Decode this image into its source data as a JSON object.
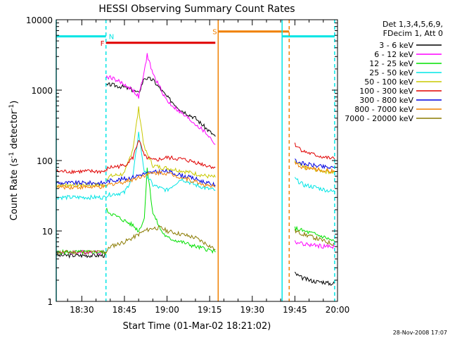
{
  "chart_data": {
    "type": "line",
    "title": "HESSI Observing Summary Count Rates",
    "xlabel": "Start Time (01-Mar-02 18:21:02)",
    "ylabel_main": "Count Rate (s",
    "ylabel_sup1": "-1",
    "ylabel_mid": " detector",
    "ylabel_sup2": "-1",
    "ylabel_end": ")",
    "y_scale": "log",
    "xlim_minutes": [
      21,
      120
    ],
    "ylim": [
      1,
      10000
    ],
    "x_ticks": [
      {
        "t": 30,
        "label": "18:30"
      },
      {
        "t": 45,
        "label": "18:45"
      },
      {
        "t": 60,
        "label": "19:00"
      },
      {
        "t": 75,
        "label": "19:15"
      },
      {
        "t": 90,
        "label": "19:30"
      },
      {
        "t": 105,
        "label": "19:45"
      },
      {
        "t": 120,
        "label": "20:00"
      }
    ],
    "y_ticks": [
      {
        "v": 1,
        "label": "1"
      },
      {
        "v": 10,
        "label": "10"
      },
      {
        "v": 100,
        "label": "100"
      },
      {
        "v": 1000,
        "label": "1000"
      },
      {
        "v": 10000,
        "label": "10000"
      }
    ],
    "legend_header": [
      "Det 1,3,4,5,6,9,",
      "FDecim 1, Att 0"
    ],
    "timestamp": "28-Nov-2008 17:07",
    "flags": [
      {
        "label": "N",
        "color": "#00e5e5",
        "segments": [
          [
            21,
            38.5
          ],
          [
            100.5,
            119
          ]
        ],
        "level": 5800
      },
      {
        "label": "F",
        "color": "#e00000",
        "segments": [
          [
            38.5,
            77
          ]
        ],
        "level": 4700
      },
      {
        "label": "S",
        "color": "#f08000",
        "segments": [
          [
            78,
            103
          ]
        ],
        "level": 6800
      }
    ],
    "event_lines": [
      {
        "t": 21,
        "color": "#00e5e5",
        "style": "solid"
      },
      {
        "t": 38.5,
        "color": "#00e5e5",
        "style": "dashed"
      },
      {
        "t": 78,
        "color": "#f08000",
        "style": "solid"
      },
      {
        "t": 100.5,
        "color": "#00e5e5",
        "style": "solid"
      },
      {
        "t": 103,
        "color": "#f08000",
        "style": "dashed"
      },
      {
        "t": 119,
        "color": "#00e5e5",
        "style": "dashed"
      }
    ],
    "series": [
      {
        "name": "3 - 6 keV",
        "color": "#000000",
        "segments": [
          {
            "x": [
              21,
              38.5
            ],
            "y": [
              4.5,
              4.5
            ]
          },
          {
            "x": [
              38.5,
              40,
              45,
              48,
              50,
              52,
              55,
              60,
              65,
              70,
              74,
              77
            ],
            "y": [
              1150,
              1200,
              1100,
              1000,
              900,
              1500,
              1400,
              800,
              520,
              400,
              280,
              220
            ]
          },
          {
            "x": [
              105,
              107,
              110,
              113,
              115,
              117,
              119
            ],
            "y": [
              2.5,
              2.2,
              2.0,
              1.9,
              1.9,
              1.8,
              1.8
            ]
          }
        ]
      },
      {
        "name": "6 - 12 keV",
        "color": "#ff00ff",
        "segments": [
          {
            "x": [
              21,
              38.5
            ],
            "y": [
              5,
              5
            ]
          },
          {
            "x": [
              38.5,
              40,
              45,
              48,
              50,
              52,
              53,
              55,
              58,
              60,
              65,
              70,
              74,
              77
            ],
            "y": [
              1500,
              1550,
              1200,
              1000,
              800,
              1800,
              3200,
              1700,
              1000,
              700,
              470,
              330,
              240,
              170
            ]
          },
          {
            "x": [
              105,
              108,
              112,
              116,
              119
            ],
            "y": [
              7,
              6.5,
              6.2,
              6,
              6
            ]
          }
        ]
      },
      {
        "name": "12 - 25 keV",
        "color": "#00e000",
        "segments": [
          {
            "x": [
              21,
              38.5
            ],
            "y": [
              5,
              5
            ]
          },
          {
            "x": [
              38.5,
              40,
              45,
              48,
              50,
              52,
              53,
              55,
              58,
              60,
              65,
              70,
              74,
              77
            ],
            "y": [
              20,
              18,
              14,
              12,
              10,
              15,
              80,
              18,
              10,
              8,
              7,
              6,
              5.5,
              5
            ]
          },
          {
            "x": [
              105,
              108,
              112,
              116,
              119
            ],
            "y": [
              11,
              10,
              9,
              8,
              7
            ]
          }
        ]
      },
      {
        "name": "25 - 50 keV",
        "color": "#00e5e5",
        "segments": [
          {
            "x": [
              21,
              38.5
            ],
            "y": [
              30,
              30
            ]
          },
          {
            "x": [
              38.5,
              40,
              45,
              48,
              50,
              52,
              55,
              58,
              60,
              65,
              70,
              74,
              77
            ],
            "y": [
              32,
              33,
              35,
              60,
              250,
              70,
              45,
              40,
              38,
              55,
              45,
              40,
              38
            ]
          },
          {
            "x": [
              105,
              108,
              112,
              116,
              119
            ],
            "y": [
              55,
              45,
              42,
              38,
              36
            ]
          }
        ]
      },
      {
        "name": "50 - 100 keV",
        "color": "#c8c800",
        "segments": [
          {
            "x": [
              21,
              38.5
            ],
            "y": [
              45,
              45
            ]
          },
          {
            "x": [
              38.5,
              40,
              45,
              48,
              50,
              52,
              55,
              58,
              60,
              65,
              70,
              74,
              77
            ],
            "y": [
              55,
              60,
              65,
              150,
              550,
              150,
              85,
              80,
              78,
              72,
              65,
              60,
              58
            ]
          },
          {
            "x": [
              105,
              108,
              112,
              116,
              119
            ],
            "y": [
              95,
              80,
              75,
              70,
              68
            ]
          }
        ]
      },
      {
        "name": "100 - 300 keV",
        "color": "#e00000",
        "segments": [
          {
            "x": [
              21,
              38.5
            ],
            "y": [
              70,
              70
            ]
          },
          {
            "x": [
              38.5,
              40,
              45,
              48,
              50,
              52,
              55,
              58,
              60,
              65,
              70,
              74,
              77
            ],
            "y": [
              75,
              80,
              85,
              110,
              200,
              115,
              100,
              105,
              110,
              105,
              95,
              85,
              80
            ]
          },
          {
            "x": [
              105,
              108,
              112,
              116,
              119
            ],
            "y": [
              170,
              135,
              120,
              110,
              105
            ]
          }
        ]
      },
      {
        "name": "300 - 800 keV",
        "color": "#0000e0",
        "segments": [
          {
            "x": [
              21,
              38.5
            ],
            "y": [
              48,
              48
            ]
          },
          {
            "x": [
              38.5,
              40,
              45,
              48,
              50,
              52,
              55,
              58,
              60,
              65,
              70,
              74,
              77
            ],
            "y": [
              50,
              52,
              55,
              58,
              62,
              65,
              68,
              70,
              70,
              62,
              55,
              48,
              45
            ]
          },
          {
            "x": [
              105,
              108,
              112,
              116,
              119
            ],
            "y": [
              100,
              90,
              85,
              80,
              78
            ]
          }
        ]
      },
      {
        "name": "800 - 7000 keV",
        "color": "#f08000",
        "segments": [
          {
            "x": [
              21,
              38.5
            ],
            "y": [
              42,
              42
            ]
          },
          {
            "x": [
              38.5,
              40,
              45,
              48,
              50,
              52,
              55,
              58,
              60,
              65,
              70,
              74,
              77
            ],
            "y": [
              44,
              46,
              50,
              54,
              58,
              62,
              66,
              68,
              66,
              58,
              50,
              44,
              42
            ]
          },
          {
            "x": [
              105,
              108,
              112,
              116,
              119
            ],
            "y": [
              90,
              80,
              75,
              72,
              70
            ]
          }
        ]
      },
      {
        "name": "7000 - 20000 keV",
        "color": "#8a7a00",
        "segments": [
          {
            "x": [
              21,
              38.5
            ],
            "y": [
              5,
              5
            ]
          },
          {
            "x": [
              38.5,
              40,
              45,
              48,
              50,
              52,
              55,
              58,
              60,
              65,
              70,
              74,
              77
            ],
            "y": [
              5,
              6,
              7,
              8,
              9,
              10,
              11,
              11,
              10,
              9,
              8,
              6.5,
              5.5
            ]
          },
          {
            "x": [
              105,
              108,
              112,
              116,
              119
            ],
            "y": [
              10,
              9,
              8,
              7,
              6.5
            ]
          }
        ]
      }
    ]
  }
}
